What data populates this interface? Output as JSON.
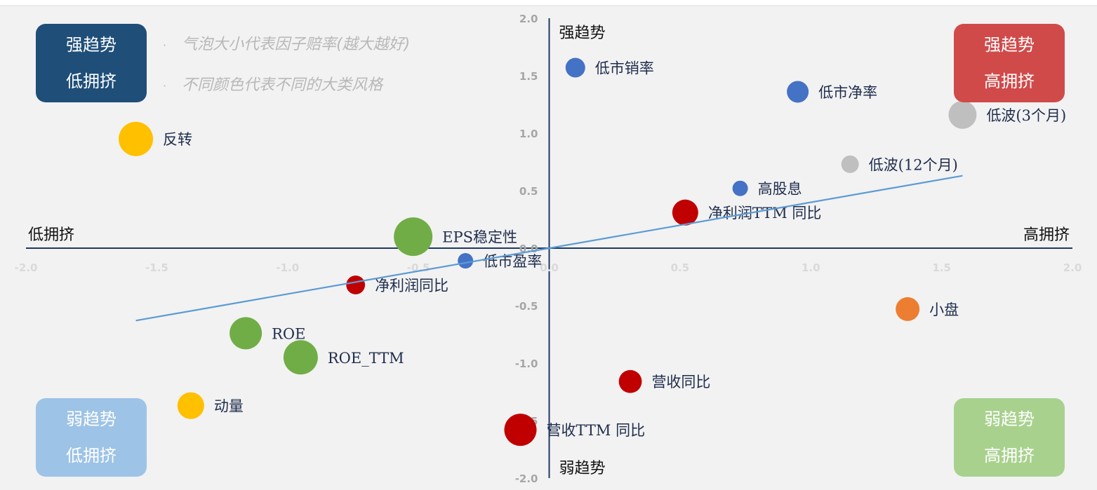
{
  "chart_data": {
    "type": "scatter",
    "subtype": "bubble",
    "xlim": [
      -2.0,
      2.0
    ],
    "ylim": [
      -2.0,
      2.0
    ],
    "x_ticks": [
      "-2.0",
      "-1.5",
      "-1.0",
      "-0.5",
      "0.0",
      "0.5",
      "1.0",
      "1.5",
      "2.0"
    ],
    "y_ticks": [
      "2.0",
      "1.5",
      "1.0",
      "0.5",
      "0.0",
      "-0.5",
      "-1.0",
      "-1.5",
      "-2.0"
    ],
    "tick_values": [
      -2.0,
      -1.5,
      -1.0,
      -0.5,
      0.0,
      0.5,
      1.0,
      1.5,
      2.0
    ],
    "grid": false,
    "axis_labels": {
      "top": "强趋势",
      "bottom": "弱趋势",
      "left": "低拥挤",
      "right": "高拥挤"
    },
    "points": [
      {
        "label": "低市销率",
        "x": 0.1,
        "y": 1.57,
        "size": 0.2,
        "color": "#4472c4"
      },
      {
        "label": "低市净率",
        "x": 0.95,
        "y": 1.36,
        "size": 0.25,
        "color": "#4472c4"
      },
      {
        "label": "低波(3个月)",
        "x": 1.58,
        "y": 1.16,
        "size": 0.4,
        "color": "#bfbfbf"
      },
      {
        "label": "反转",
        "x": -1.58,
        "y": 0.95,
        "size": 0.55,
        "color": "#ffc000"
      },
      {
        "label": "低波(12个月)",
        "x": 1.15,
        "y": 0.73,
        "size": 0.15,
        "color": "#bfbfbf"
      },
      {
        "label": "高股息",
        "x": 0.73,
        "y": 0.52,
        "size": 0.1,
        "color": "#4472c4"
      },
      {
        "label": "净利润TTM 同比",
        "x": 0.52,
        "y": 0.31,
        "size": 0.35,
        "color": "#c00000"
      },
      {
        "label": "EPS稳定性",
        "x": -0.52,
        "y": 0.1,
        "size": 0.65,
        "color": "#70ad47"
      },
      {
        "label": "低市盈率",
        "x": -0.32,
        "y": -0.11,
        "size": 0.1,
        "color": "#4472c4"
      },
      {
        "label": "净利润同比",
        "x": -0.74,
        "y": -0.32,
        "size": 0.18,
        "color": "#c00000"
      },
      {
        "label": "小盘",
        "x": 1.37,
        "y": -0.53,
        "size": 0.3,
        "color": "#ed7d31"
      },
      {
        "label": "ROE",
        "x": -1.16,
        "y": -0.74,
        "size": 0.5,
        "color": "#70ad47"
      },
      {
        "label": "ROE_TTM",
        "x": -0.95,
        "y": -0.95,
        "size": 0.55,
        "color": "#70ad47"
      },
      {
        "label": "营收同比",
        "x": 0.31,
        "y": -1.16,
        "size": 0.28,
        "color": "#c00000"
      },
      {
        "label": "动量",
        "x": -1.37,
        "y": -1.37,
        "size": 0.37,
        "color": "#ffc000"
      },
      {
        "label": "营收TTM 同比",
        "x": -0.11,
        "y": -1.58,
        "size": 0.5,
        "color": "#c00000"
      }
    ],
    "trendline": {
      "x": [
        -1.58,
        1.58
      ],
      "y": [
        -0.63,
        0.63
      ],
      "color": "#5b9bd5"
    },
    "annotations": [
      "气泡大小代表因子赔率(越大越好)",
      "不同颜色代表不同的大类风格"
    ]
  },
  "quadrants": {
    "top_left": {
      "line1": "强趋势",
      "line2": "低拥挤",
      "color": "#1f4e79"
    },
    "top_right": {
      "line1": "强趋势",
      "line2": "高拥挤",
      "color": "#d04a4a"
    },
    "bottom_left": {
      "line1": "弱趋势",
      "line2": "低拥挤",
      "color": "#9dc3e6"
    },
    "bottom_right": {
      "line1": "弱趋势",
      "line2": "高拥挤",
      "color": "#a9d18e"
    }
  },
  "notes": {
    "bullet": "·",
    "line1": "气泡大小代表因子赔率(越大越好)",
    "line2": "不同颜色代表不同的大类风格"
  }
}
